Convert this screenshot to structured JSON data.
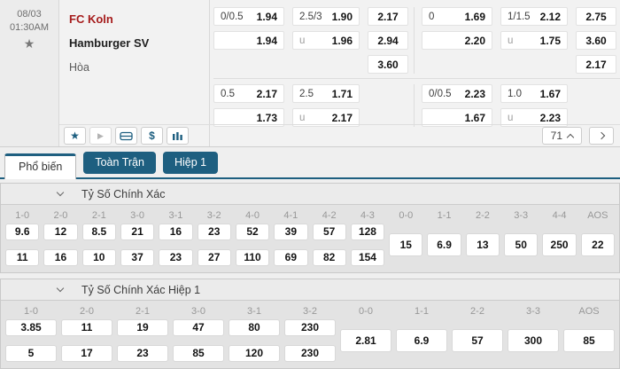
{
  "colors": {
    "accent": "#1e5f80",
    "home_team_red": "#a61c1c"
  },
  "match": {
    "date": "08/03",
    "time": "01:30AM",
    "home": "FC Koln",
    "away": "Hamburger SV",
    "draw_label": "Hòa",
    "blocks": [
      {
        "groups": [
          {
            "hdp": [
              {
                "line": "0/0.5",
                "odds": "1.94"
              },
              {
                "line": "",
                "odds": "1.94"
              }
            ],
            "ou": [
              {
                "line": "2.5/3",
                "odds": "1.90"
              },
              {
                "line": "u",
                "odds": "1.96"
              }
            ],
            "x12": [
              "2.17",
              "2.94",
              "3.60"
            ]
          },
          {
            "hdp": [
              {
                "line": "0",
                "odds": "1.69"
              },
              {
                "line": "",
                "odds": "2.20"
              }
            ],
            "ou": [
              {
                "line": "1/1.5",
                "odds": "2.12"
              },
              {
                "line": "u",
                "odds": "1.75"
              }
            ],
            "x12": [
              "2.75",
              "3.60",
              "2.17"
            ]
          }
        ]
      },
      {
        "groups": [
          {
            "hdp": [
              {
                "line": "0.5",
                "odds": "2.17"
              },
              {
                "line": "",
                "odds": "1.73"
              }
            ],
            "ou": [
              {
                "line": "2.5",
                "odds": "1.71"
              },
              {
                "line": "u",
                "odds": "2.17"
              }
            ]
          },
          {
            "hdp": [
              {
                "line": "0/0.5",
                "odds": "2.23"
              },
              {
                "line": "",
                "odds": "1.67"
              }
            ],
            "ou": [
              {
                "line": "1.0",
                "odds": "1.67"
              },
              {
                "line": "u",
                "odds": "2.23"
              }
            ]
          }
        ]
      }
    ]
  },
  "toolbar": {
    "market_count": "71",
    "icons": [
      "favorite-star",
      "play",
      "pitch",
      "dollar",
      "stats"
    ]
  },
  "tabs": [
    {
      "label": "Phổ biến",
      "active": true
    },
    {
      "label": "Toàn Trận",
      "active": false
    },
    {
      "label": "Hiệp 1",
      "active": false
    }
  ],
  "sections": [
    {
      "title": "Tỷ Số Chính Xác",
      "columns": [
        {
          "header": "1-0",
          "values": [
            "9.6",
            "11"
          ]
        },
        {
          "header": "2-0",
          "values": [
            "12",
            "16"
          ]
        },
        {
          "header": "2-1",
          "values": [
            "8.5",
            "10"
          ]
        },
        {
          "header": "3-0",
          "values": [
            "21",
            "37"
          ]
        },
        {
          "header": "3-1",
          "values": [
            "16",
            "23"
          ]
        },
        {
          "header": "3-2",
          "values": [
            "23",
            "27"
          ]
        },
        {
          "header": "4-0",
          "values": [
            "52",
            "110"
          ]
        },
        {
          "header": "4-1",
          "values": [
            "39",
            "69"
          ]
        },
        {
          "header": "4-2",
          "values": [
            "57",
            "82"
          ]
        },
        {
          "header": "4-3",
          "values": [
            "128",
            "154"
          ]
        },
        {
          "header": "0-0",
          "values": [
            "15"
          ]
        },
        {
          "header": "1-1",
          "values": [
            "6.9"
          ]
        },
        {
          "header": "2-2",
          "values": [
            "13"
          ]
        },
        {
          "header": "3-3",
          "values": [
            "50"
          ]
        },
        {
          "header": "4-4",
          "values": [
            "250"
          ]
        },
        {
          "header": "AOS",
          "values": [
            "22"
          ]
        }
      ]
    },
    {
      "title": "Tỷ Số Chính Xác Hiệp 1",
      "columns": [
        {
          "header": "1-0",
          "values": [
            "3.85",
            "5"
          ]
        },
        {
          "header": "2-0",
          "values": [
            "11",
            "17"
          ]
        },
        {
          "header": "2-1",
          "values": [
            "19",
            "23"
          ]
        },
        {
          "header": "3-0",
          "values": [
            "47",
            "85"
          ]
        },
        {
          "header": "3-1",
          "values": [
            "80",
            "120"
          ]
        },
        {
          "header": "3-2",
          "values": [
            "230",
            "230"
          ]
        },
        {
          "header": "0-0",
          "values": [
            "2.81"
          ]
        },
        {
          "header": "1-1",
          "values": [
            "6.9"
          ]
        },
        {
          "header": "2-2",
          "values": [
            "57"
          ]
        },
        {
          "header": "3-3",
          "values": [
            "300"
          ]
        },
        {
          "header": "AOS",
          "values": [
            "85"
          ]
        }
      ]
    }
  ]
}
